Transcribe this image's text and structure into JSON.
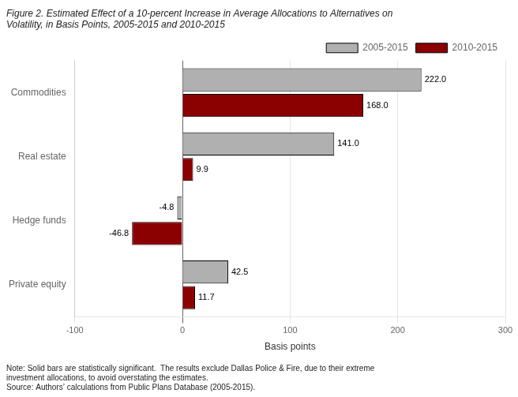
{
  "chart_data": {
    "type": "bar",
    "orientation": "horizontal",
    "title": [
      "Figure 2. Estimated Effect of a 10-percent Increase in Average Allocations to Alternatives on",
      "Volatility, in Basis Points, 2005-2015 and 2010-2015"
    ],
    "annotations": [
      "Note: Solid bars are statistically significant.  The results exclude Dallas Police & Fire, due to their extreme",
      "investment allocations, to avoid overstating the estimates.",
      "Source: Authors’ calculations from Public Plans Database (2005-2015)."
    ],
    "x_label": "Basis points",
    "categories": [
      "Commodities",
      "Real estate",
      "Hedge funds",
      "Private equity"
    ],
    "series": [
      {
        "name": "2005-2015",
        "color": "#b0b0b0",
        "values": [
          222.0,
          141.0,
          -4.8,
          42.5
        ],
        "value_labels": [
          "222.0",
          "141.0",
          "-4.8",
          "42.5"
        ]
      },
      {
        "name": "2010-2015",
        "color": "#8b0000",
        "values": [
          168.0,
          9.9,
          -46.8,
          11.7
        ],
        "value_labels": [
          "168.0",
          "9.9",
          "-46.8",
          "11.7"
        ]
      }
    ],
    "xlim": [
      -100,
      300
    ],
    "xticks": [
      -100,
      0,
      100,
      200,
      300
    ],
    "grid": true,
    "legend": "upper right",
    "data_labels": true
  }
}
